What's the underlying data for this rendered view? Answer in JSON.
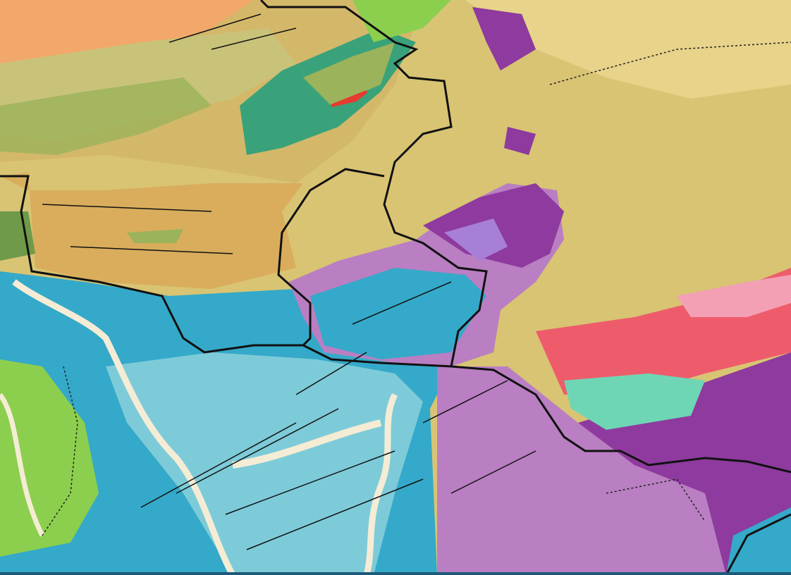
{
  "map": {
    "colors": {
      "loess_tan": "#d9b466",
      "plateau_khaki": "#d8c473",
      "orange_nw": "#f2a86a",
      "green_ridges": "#9bb35a",
      "yellow_green": "#e5e58a",
      "teal_green": "#3aa27a",
      "purple_dark": "#8e3a9e",
      "purple_light": "#b97fc2",
      "lavender": "#a87fd6",
      "blue_dark": "#35a9c9",
      "blue_light": "#7dcbd9",
      "river_cream": "#f5ecd5",
      "lime": "#8ccf4e",
      "pink_red": "#ee5c6c",
      "mint": "#6fd6b5",
      "pink": "#f3a0b5",
      "border": "#111111",
      "bar": "#1d5a78"
    }
  }
}
